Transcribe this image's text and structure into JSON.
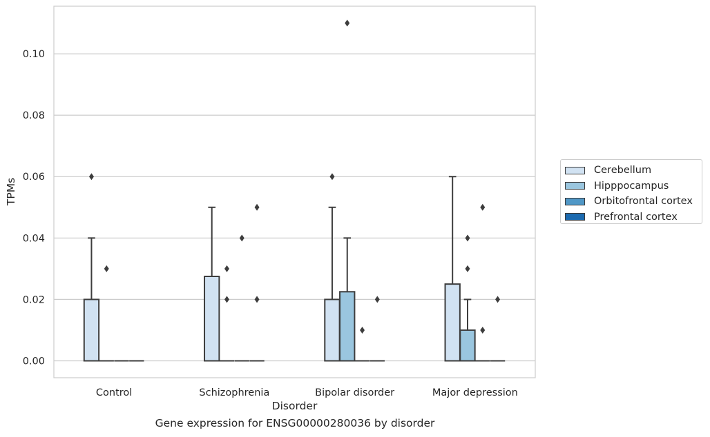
{
  "chart_data": {
    "type": "box",
    "xlabel": "Disorder",
    "ylabel": "TPMs",
    "ylim": [
      -0.0055,
      0.1155
    ],
    "yticks": [
      "0.00",
      "0.02",
      "0.04",
      "0.06",
      "0.08",
      "0.10"
    ],
    "grid": true,
    "legend_placement": "right",
    "categories": [
      "Control",
      "Schizophrenia",
      "Bipolar disorder",
      "Major depression"
    ],
    "series": [
      {
        "name": "Cerebellum",
        "color": "#d1e2f2",
        "boxes": [
          {
            "q1": 0,
            "q3": 0.02,
            "median": 0,
            "whisker_low": 0,
            "whisker_high": 0.04,
            "outliers": [
              0.06
            ]
          },
          {
            "q1": 0,
            "q3": 0.0275,
            "median": 0,
            "whisker_low": 0,
            "whisker_high": 0.05,
            "outliers": []
          },
          {
            "q1": 0,
            "q3": 0.02,
            "median": 0,
            "whisker_low": 0,
            "whisker_high": 0.05,
            "outliers": [
              0.06
            ]
          },
          {
            "q1": 0,
            "q3": 0.025,
            "median": 0,
            "whisker_low": 0,
            "whisker_high": 0.06,
            "outliers": []
          }
        ]
      },
      {
        "name": "Hipppocampus",
        "color": "#9ac6df",
        "boxes": [
          {
            "q1": 0,
            "q3": 0,
            "median": 0,
            "whisker_low": 0,
            "whisker_high": 0,
            "outliers": [
              0.03
            ]
          },
          {
            "q1": 0,
            "q3": 0,
            "median": 0,
            "whisker_low": 0,
            "whisker_high": 0,
            "outliers": [
              0.02,
              0.03
            ]
          },
          {
            "q1": 0,
            "q3": 0.0225,
            "median": 0,
            "whisker_low": 0,
            "whisker_high": 0.04,
            "outliers": [
              0.11
            ]
          },
          {
            "q1": 0,
            "q3": 0.01,
            "median": 0,
            "whisker_low": 0,
            "whisker_high": 0.02,
            "outliers": [
              0.03,
              0.04
            ]
          }
        ]
      },
      {
        "name": "Orbitofrontal cortex",
        "color": "#5097c6",
        "boxes": [
          {
            "q1": 0,
            "q3": 0,
            "median": 0,
            "whisker_low": 0,
            "whisker_high": 0,
            "outliers": []
          },
          {
            "q1": 0,
            "q3": 0,
            "median": 0,
            "whisker_low": 0,
            "whisker_high": 0,
            "outliers": [
              0.04
            ]
          },
          {
            "q1": 0,
            "q3": 0,
            "median": 0,
            "whisker_low": 0,
            "whisker_high": 0,
            "outliers": [
              0.01
            ]
          },
          {
            "q1": 0,
            "q3": 0,
            "median": 0,
            "whisker_low": 0,
            "whisker_high": 0,
            "outliers": [
              0.01,
              0.05
            ]
          }
        ]
      },
      {
        "name": "Prefrontal cortex",
        "color": "#1c6aaf",
        "boxes": [
          {
            "q1": 0,
            "q3": 0,
            "median": 0,
            "whisker_low": 0,
            "whisker_high": 0,
            "outliers": []
          },
          {
            "q1": 0,
            "q3": 0,
            "median": 0,
            "whisker_low": 0,
            "whisker_high": 0,
            "outliers": [
              0.02,
              0.05
            ]
          },
          {
            "q1": 0,
            "q3": 0,
            "median": 0,
            "whisker_low": 0,
            "whisker_high": 0,
            "outliers": [
              0.02
            ]
          },
          {
            "q1": 0,
            "q3": 0,
            "median": 0,
            "whisker_low": 0,
            "whisker_high": 0,
            "outliers": [
              0.02
            ]
          }
        ]
      }
    ]
  },
  "caption": "Gene expression for ENSG00000280036 by disorder"
}
